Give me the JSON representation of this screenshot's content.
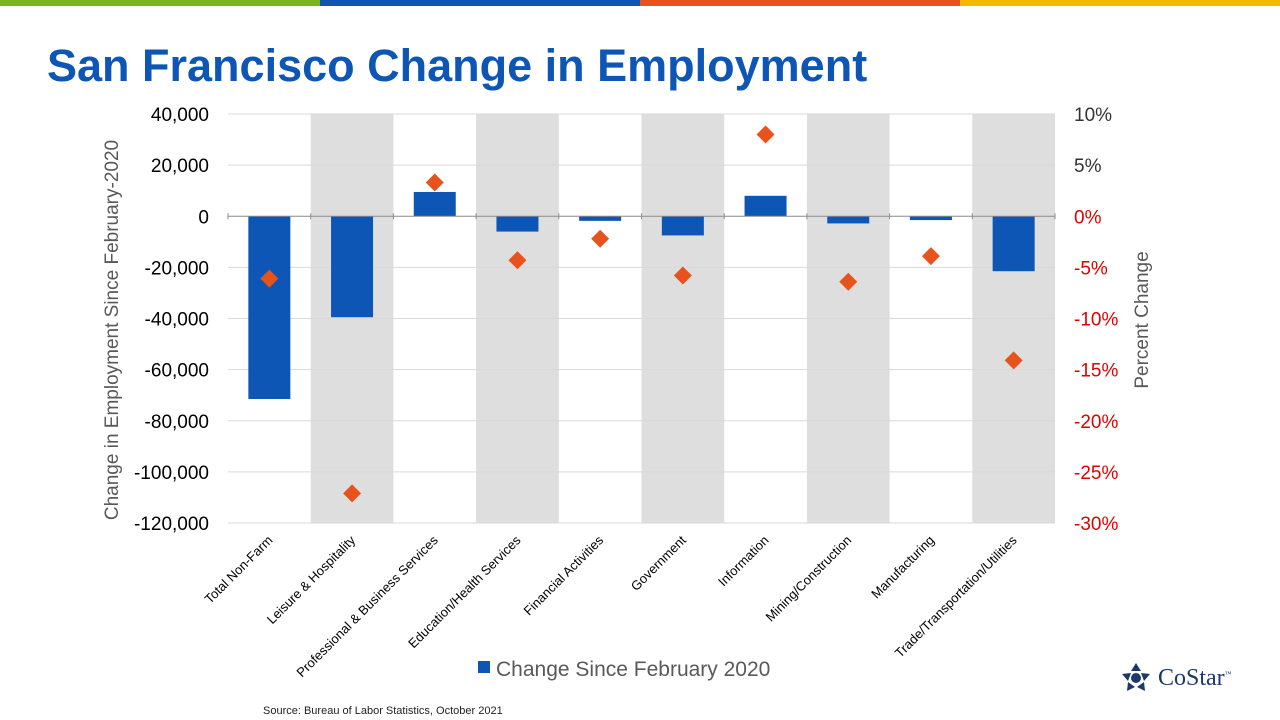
{
  "title": "San Francisco Change in Employment",
  "source": "Source: Bureau of Labor Statistics, October 2021",
  "logo": {
    "text": "CoStar",
    "mark": "™"
  },
  "colors": {
    "stripe_green": "#7ab51d",
    "stripe_blue": "#0d56b5",
    "stripe_orange": "#e8521c",
    "stripe_yellow": "#f5b800",
    "title": "#0d56b5",
    "bar": "#0d56b5",
    "marker": "#e8521c",
    "band": "#dedede",
    "grid": "#d9d9d9",
    "axis_text": "#000000",
    "right_axis_text": "#e00000",
    "axis_label": "#595959"
  },
  "chart_data": {
    "type": "bar",
    "categories": [
      "Total Non-Farm",
      "Leisure & Hospitality",
      "Professional & Business Services",
      "Education/Health Services",
      "Financial Activities",
      "Government",
      "Information",
      "Mining/Construction",
      "Manufacturing",
      "Trade/Transportation/Utilities"
    ],
    "series": [
      {
        "name": "Change Since February 2020",
        "type": "bar",
        "axis": "left",
        "values": [
          -71500,
          -39500,
          9500,
          -6000,
          -1800,
          -7500,
          8000,
          -2800,
          -1500,
          -21500
        ]
      },
      {
        "name": "Percent Change",
        "type": "scatter",
        "marker": "diamond",
        "axis": "right",
        "values": [
          -6.1,
          -27.1,
          3.3,
          -4.3,
          -2.2,
          -5.8,
          8.0,
          -6.4,
          -3.9,
          -14.1
        ]
      }
    ],
    "y_left": {
      "label": "Change in Employment  Since February-2020",
      "ylim": [
        -120000,
        40000
      ],
      "ticks": [
        40000,
        20000,
        0,
        -20000,
        -40000,
        -60000,
        -80000,
        -100000,
        -120000
      ],
      "tick_labels": [
        "40,000",
        "20,000",
        "0",
        "-20,000",
        "-40,000",
        "-60,000",
        "-80,000",
        "-100,000",
        "-120,000"
      ]
    },
    "y_right": {
      "label": "Percent Change",
      "ylim": [
        -30,
        10
      ],
      "ticks": [
        10,
        5,
        0,
        -5,
        -10,
        -15,
        -20,
        -25,
        -30
      ],
      "tick_labels": [
        "10%",
        "5%",
        "0%",
        "-5%",
        "-10%",
        "-15%",
        "-20%",
        "-25%",
        "-30%"
      ]
    },
    "legend": {
      "label": "Change Since February 2020",
      "position": "bottom"
    },
    "banded_background": true,
    "grid": true
  }
}
